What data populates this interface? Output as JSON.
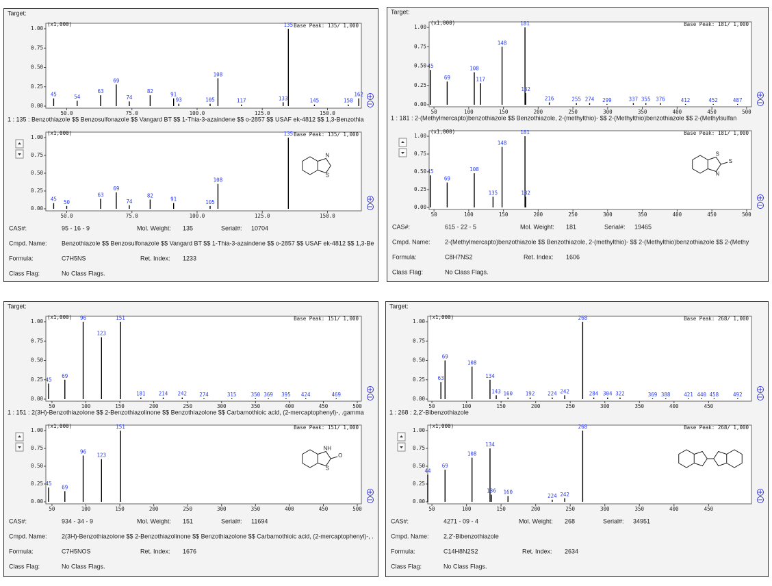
{
  "chart_data": [
    {
      "type": "bar",
      "subtitle": "(x1,000)",
      "annotation": "Base Peak: 135/  1,000",
      "color": "#000000",
      "label_color": "#2a3cf0",
      "x": [
        45,
        54,
        63,
        69,
        74,
        82,
        91,
        93,
        105,
        108,
        117,
        133,
        135,
        145,
        158,
        162
      ],
      "values": [
        0.1,
        0.07,
        0.14,
        0.28,
        0.06,
        0.14,
        0.1,
        0.03,
        0.03,
        0.36,
        0.02,
        0.05,
        1.0,
        0.02,
        0.02,
        0.1
      ],
      "xlim": [
        42,
        163
      ],
      "xticks": [
        {
          "value": 50,
          "label": "50.0"
        },
        {
          "value": 75,
          "label": "75.0"
        },
        {
          "value": 100,
          "label": "100.0"
        },
        {
          "value": 125,
          "label": "125.0"
        },
        {
          "value": 150,
          "label": "150.0"
        }
      ],
      "ylim": [
        0,
        1
      ],
      "yticks": [
        {
          "value": 0,
          "label": "0.00"
        },
        {
          "value": 0.25,
          "label": "0.25"
        },
        {
          "value": 0.5,
          "label": "0.50"
        },
        {
          "value": 0.75,
          "label": "0.75"
        },
        {
          "value": 1,
          "label": "1.00"
        }
      ]
    },
    {
      "type": "bar",
      "subtitle": "(x1,000)",
      "annotation": "Base Peak: 135/  1,000",
      "color": "#000000",
      "label_color": "#2a3cf0",
      "x": [
        45,
        50,
        63,
        69,
        74,
        82,
        91,
        105,
        108,
        135
      ],
      "values": [
        0.08,
        0.04,
        0.14,
        0.23,
        0.05,
        0.13,
        0.08,
        0.04,
        0.35,
        1.0
      ],
      "xlim": [
        42,
        163
      ],
      "xticks": [
        {
          "value": 50,
          "label": "50.0"
        },
        {
          "value": 75,
          "label": "75.0"
        },
        {
          "value": 100,
          "label": "100.0"
        },
        {
          "value": 125,
          "label": "125.0"
        },
        {
          "value": 150,
          "label": "150.0"
        }
      ],
      "ylim": [
        0,
        1
      ],
      "yticks": [
        {
          "value": 0,
          "label": "0.00"
        },
        {
          "value": 0.25,
          "label": "0.25"
        },
        {
          "value": 0.5,
          "label": "0.50"
        },
        {
          "value": 0.75,
          "label": "0.75"
        },
        {
          "value": 1,
          "label": "1.00"
        }
      ]
    },
    {
      "type": "bar",
      "subtitle": "(x1,000)",
      "annotation": "Base Peak: 181/  1,000",
      "color": "#000000",
      "label_color": "#2a3cf0",
      "x": [
        45,
        69,
        108,
        117,
        148,
        181,
        182,
        216,
        255,
        274,
        299,
        337,
        355,
        376,
        412,
        452,
        487
      ],
      "values": [
        0.45,
        0.3,
        0.42,
        0.28,
        0.75,
        1.0,
        0.15,
        0.03,
        0.02,
        0.02,
        0.01,
        0.02,
        0.02,
        0.02,
        0.01,
        0.01,
        0.01
      ],
      "xlim": [
        43,
        507
      ],
      "xticks": [
        50,
        100,
        150,
        200,
        250,
        300,
        350,
        400,
        450,
        500
      ],
      "ylim": [
        0,
        1
      ],
      "yticks": [
        {
          "value": 0,
          "label": "0.00"
        },
        {
          "value": 0.25,
          "label": "0.25"
        },
        {
          "value": 0.5,
          "label": "0.50"
        },
        {
          "value": 0.75,
          "label": "0.75"
        },
        {
          "value": 1,
          "label": "1.00"
        }
      ]
    },
    {
      "type": "bar",
      "subtitle": "(x1,000)",
      "annotation": "Base Peak: 181/  1,000",
      "color": "#000000",
      "label_color": "#2a3cf0",
      "x": [
        45,
        69,
        108,
        135,
        148,
        181,
        182
      ],
      "values": [
        0.45,
        0.35,
        0.48,
        0.15,
        0.85,
        1.0,
        0.15
      ],
      "xlim": [
        43,
        507
      ],
      "xticks": [
        50,
        100,
        150,
        200,
        250,
        300,
        350,
        400,
        450,
        500
      ],
      "ylim": [
        0,
        1
      ],
      "yticks": [
        {
          "value": 0,
          "label": "0.00"
        },
        {
          "value": 0.25,
          "label": "0.25"
        },
        {
          "value": 0.5,
          "label": "0.50"
        },
        {
          "value": 0.75,
          "label": "0.75"
        },
        {
          "value": 1,
          "label": "1.00"
        }
      ]
    },
    {
      "type": "bar",
      "subtitle": "(x1,000)",
      "annotation": "Base Peak: 151/  1,000",
      "color": "#000000",
      "label_color": "#2a3cf0",
      "x": [
        45,
        69,
        96,
        123,
        151,
        181,
        214,
        242,
        274,
        315,
        350,
        369,
        395,
        424,
        469
      ],
      "values": [
        0.2,
        0.25,
        1.0,
        0.8,
        1.0,
        0.02,
        0.02,
        0.02,
        0.01,
        0.01,
        0.01,
        0.01,
        0.01,
        0.01,
        0.01
      ],
      "xlim": [
        41,
        506
      ],
      "xticks": [
        50,
        100,
        150,
        200,
        250,
        300,
        350,
        400,
        450,
        500
      ],
      "ylim": [
        0,
        1
      ],
      "yticks": [
        {
          "value": 0,
          "label": "0.00"
        },
        {
          "value": 0.25,
          "label": "0.25"
        },
        {
          "value": 0.5,
          "label": "0.50"
        },
        {
          "value": 0.75,
          "label": "0.75"
        },
        {
          "value": 1,
          "label": "1.00"
        }
      ]
    },
    {
      "type": "bar",
      "subtitle": "(x1,000)",
      "annotation": "Base Peak: 151/  1,000",
      "color": "#000000",
      "label_color": "#2a3cf0",
      "x": [
        45,
        69,
        96,
        123,
        151
      ],
      "values": [
        0.2,
        0.15,
        0.65,
        0.6,
        1.0
      ],
      "xlim": [
        41,
        506
      ],
      "xticks": [
        50,
        100,
        150,
        200,
        250,
        300,
        350,
        400,
        450,
        500
      ],
      "ylim": [
        0,
        1
      ],
      "yticks": [
        {
          "value": 0,
          "label": "0.00"
        },
        {
          "value": 0.25,
          "label": "0.25"
        },
        {
          "value": 0.5,
          "label": "0.50"
        },
        {
          "value": 0.75,
          "label": "0.75"
        },
        {
          "value": 1,
          "label": "1.00"
        }
      ]
    },
    {
      "type": "bar",
      "subtitle": "(x1,000)",
      "annotation": "Base Peak: 268/  1,000",
      "color": "#000000",
      "label_color": "#2a3cf0",
      "x": [
        63,
        69,
        108,
        134,
        143,
        160,
        192,
        224,
        242,
        268,
        284,
        304,
        322,
        369,
        388,
        421,
        440,
        458,
        492
      ],
      "values": [
        0.22,
        0.5,
        0.42,
        0.25,
        0.05,
        0.02,
        0.02,
        0.02,
        0.05,
        1.0,
        0.02,
        0.02,
        0.02,
        0.01,
        0.01,
        0.01,
        0.01,
        0.01,
        0.01
      ],
      "xlim": [
        44,
        512
      ],
      "xticks": [
        50,
        100,
        150,
        200,
        250,
        300,
        350,
        400,
        450
      ],
      "ylim": [
        0,
        1
      ],
      "yticks": [
        {
          "value": 0,
          "label": "0.00"
        },
        {
          "value": 0.25,
          "label": "0.25"
        },
        {
          "value": 0.5,
          "label": "0.50"
        },
        {
          "value": 0.75,
          "label": "0.75"
        },
        {
          "value": 1,
          "label": "1.00"
        }
      ]
    },
    {
      "type": "bar",
      "subtitle": "(x1,000)",
      "annotation": "Base Peak: 268/  1,000",
      "color": "#000000",
      "label_color": "#2a3cf0",
      "x": [
        44,
        69,
        108,
        134,
        136,
        160,
        224,
        242,
        268
      ],
      "values": [
        0.38,
        0.45,
        0.62,
        0.75,
        0.1,
        0.08,
        0.03,
        0.05,
        1.0
      ],
      "xlim": [
        44,
        512
      ],
      "xticks": [
        50,
        100,
        150,
        200,
        250,
        300,
        350,
        400,
        450
      ],
      "ylim": [
        0,
        1
      ],
      "yticks": [
        {
          "value": 0,
          "label": "0.00"
        },
        {
          "value": 0.25,
          "label": "0.25"
        },
        {
          "value": 0.5,
          "label": "0.50"
        },
        {
          "value": 0.75,
          "label": "0.75"
        },
        {
          "value": 1,
          "label": "1.00"
        }
      ]
    }
  ],
  "panels": [
    {
      "target_label": "Target:",
      "hit_line": "1 : 135 : Benzothiazole $$ Benzosulfonazole $$ Vangard BT $$ 1-Thia-3-azaindene $$ o-2857 $$ USAF ek-4812 $$ 1,3-Benzothia",
      "structure": [
        "N",
        "S"
      ],
      "fields": [
        [
          "CAS#:",
          "95 - 16 - 9",
          "Mol. Weight:",
          "135",
          "Serial#:",
          "10704"
        ],
        [
          "Cmpd. Name:",
          "Benzothiazole $$ Benzosulfonazole $$ Vangard BT $$ 1-Thia-3-azaindene $$ o-2857 $$ USAF ek-4812 $$ 1,3-Be"
        ],
        [
          "Formula:",
          "C7H5NS",
          "Ret. Index:",
          "1233"
        ],
        [
          "Class Flag:",
          "No Class Flags."
        ]
      ]
    },
    {
      "target_label": "Target:",
      "hit_line": "1 : 181 : 2-(Methylmercapto)benzothiazole $$ Benzothiazole, 2-(methylthio)- $$ 2-(Methylthio)benzothiazole $$ 2-(Methylsulfan",
      "structure": [
        "S",
        "N",
        "S"
      ],
      "fields": [
        [
          "CAS#:",
          "615 - 22 - 5",
          "Mol. Weight:",
          "181",
          "Serial#:",
          "19465"
        ],
        [
          "Cmpd. Name:",
          "2-(Methylmercapto)benzothiazole $$ Benzothiazole, 2-(methylthio)- $$ 2-(Methylthio)benzothiazole $$ 2-(Methy"
        ],
        [
          "Formula:",
          "C8H7NS2",
          "Ret. Index:",
          "1606"
        ],
        [
          "Class Flag:",
          "No Class Flags."
        ]
      ]
    },
    {
      "target_label": "Target:",
      "hit_line": "1 : 151 : 2(3H)-Benzothiazolone $$ 2-Benzothiazolinone $$ Benzothiazolone $$ Carbamothioic acid, (2-mercaptophenyl)-, .gamma",
      "structure": [
        "NH",
        "S",
        "O"
      ],
      "fields": [
        [
          "CAS#:",
          "934 - 34 - 9",
          "Mol. Weight:",
          "151",
          "Serial#:",
          "11694"
        ],
        [
          "Cmpd. Name:",
          "2(3H)-Benzothiazolone $$ 2-Benzothiazolinone $$ Benzothiazolone $$ Carbamothioic acid, (2-mercaptophenyl)-, ."
        ],
        [
          "Formula:",
          "C7H5NOS",
          "Ret. Index:",
          "1676"
        ],
        [
          "Class Flag:",
          "No Class Flags."
        ]
      ]
    },
    {
      "target_label": "Target:",
      "hit_line": "1 : 268 : 2,2'-Bibenzothiazole",
      "fields": [
        [
          "CAS#:",
          "4271 - 09 - 4",
          "Mol. Weight:",
          "268",
          "Serial#:",
          "34951"
        ],
        [
          "Cmpd. Name:",
          "2,2'-Bibenzothiazole"
        ],
        [
          "Formula:",
          "C14H8N2S2",
          "Ret. Index:",
          "2634"
        ],
        [
          "Class Flag:",
          "No Class Flags."
        ]
      ]
    }
  ]
}
